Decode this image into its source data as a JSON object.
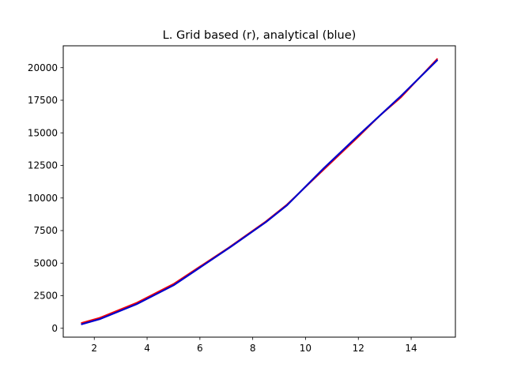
{
  "chart_data": {
    "type": "line",
    "title": "L. Grid based (r), analytical (blue)",
    "xlabel": "",
    "ylabel": "",
    "xlim": [
      0.825,
      15.675
    ],
    "ylim": [
      -680,
      21680
    ],
    "xticks": [
      2,
      4,
      6,
      8,
      10,
      12,
      14
    ],
    "yticks": [
      0,
      2500,
      5000,
      7500,
      10000,
      12500,
      15000,
      17500,
      20000
    ],
    "xtick_labels": [
      "2",
      "4",
      "6",
      "8",
      "10",
      "12",
      "14"
    ],
    "ytick_labels": [
      "0",
      "2500",
      "5000",
      "7500",
      "10000",
      "12500",
      "15000",
      "17500",
      "20000"
    ],
    "grid": false,
    "legend": "none",
    "series": [
      {
        "color": "#ff0000",
        "x": [
          1.5,
          2.2,
          3.6,
          5.0,
          7.1,
          8.5,
          9.3,
          10.7,
          12.0,
          12.8,
          13.6,
          15.0
        ],
        "y": [
          400,
          800,
          1950,
          3400,
          6200,
          8200,
          9500,
          12200,
          14700,
          16300,
          17700,
          20700
        ]
      },
      {
        "color": "#0000cc",
        "x": [
          1.5,
          2.2,
          3.6,
          5.0,
          7.2,
          8.5,
          9.3,
          10.7,
          12.0,
          12.8,
          13.6,
          15.0
        ],
        "y": [
          300,
          700,
          1850,
          3300,
          6300,
          8150,
          9450,
          12300,
          14800,
          16300,
          17800,
          20600
        ]
      }
    ]
  }
}
